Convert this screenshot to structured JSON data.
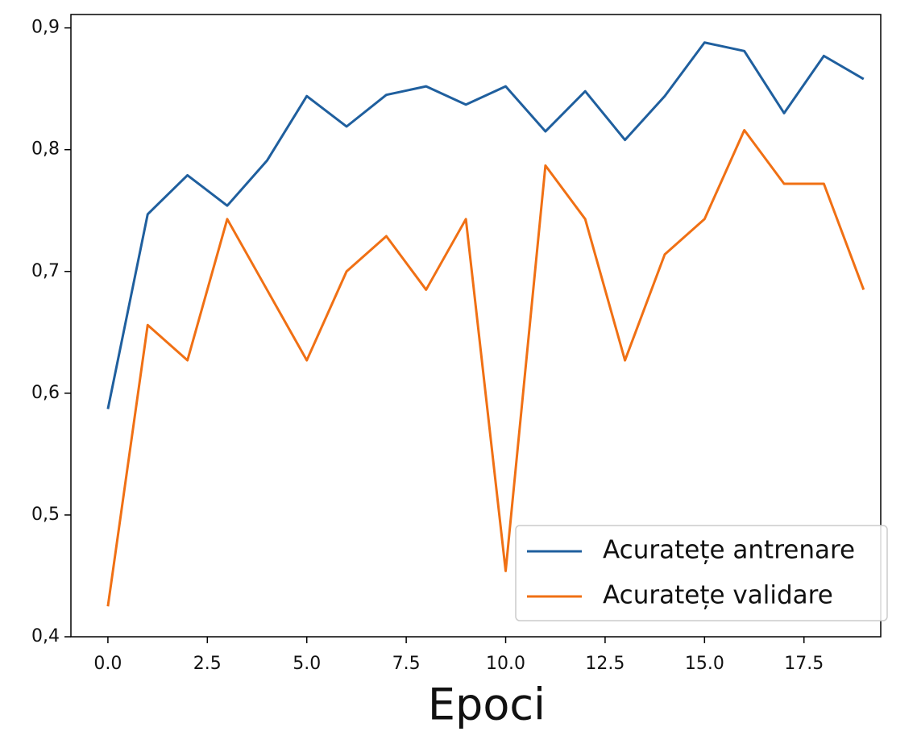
{
  "chart_data": {
    "type": "line",
    "xlabel": "Epoci",
    "x": [
      0,
      1,
      2,
      3,
      4,
      5,
      6,
      7,
      8,
      9,
      10,
      11,
      12,
      13,
      14,
      15,
      16,
      17,
      18,
      19
    ],
    "series": [
      {
        "name": "Acuratețe antrenare",
        "color": "#1f5f9e",
        "values": [
          0.587,
          0.747,
          0.779,
          0.754,
          0.791,
          0.844,
          0.819,
          0.845,
          0.852,
          0.837,
          0.852,
          0.815,
          0.848,
          0.808,
          0.844,
          0.888,
          0.881,
          0.83,
          0.877,
          0.858
        ]
      },
      {
        "name": "Acuratețe validare",
        "color": "#f07014",
        "values": [
          0.425,
          0.656,
          0.627,
          0.743,
          0.685,
          0.627,
          0.7,
          0.729,
          0.685,
          0.743,
          0.454,
          0.787,
          0.743,
          0.627,
          0.714,
          0.743,
          0.816,
          0.772,
          0.772,
          0.685
        ]
      }
    ],
    "xlim": [
      -0.93,
      19.43
    ],
    "ylim": [
      0.4,
      0.911
    ],
    "xticks": [
      {
        "value": 0,
        "label": "0.0"
      },
      2.5,
      {
        "value": 5,
        "label": "5.0"
      },
      7.5,
      {
        "value": 10,
        "label": "10.0"
      },
      12.5,
      {
        "value": 15,
        "label": "15.0"
      },
      17.5
    ],
    "yticks": [
      {
        "value": 0.4,
        "label": "0,4"
      },
      {
        "value": 0.5,
        "label": "0,5"
      },
      {
        "value": 0.6,
        "label": "0,6"
      },
      {
        "value": 0.7,
        "label": "0,7"
      },
      {
        "value": 0.8,
        "label": "0,8"
      },
      {
        "value": 0.9,
        "label": "0,9"
      }
    ],
    "legend_loc": "lower right",
    "grid": false
  }
}
